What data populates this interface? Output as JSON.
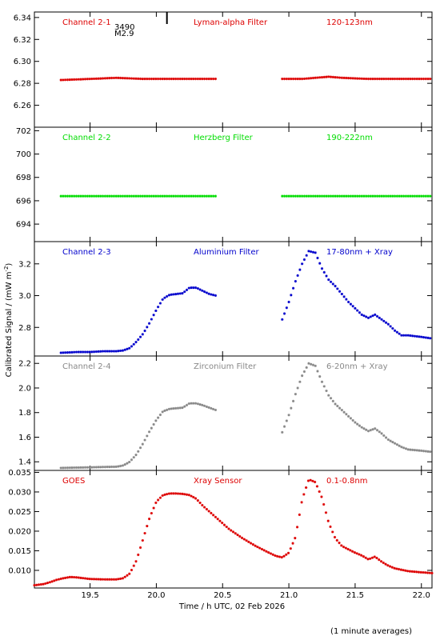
{
  "figure": {
    "ylabel": "Calibrated Signal / (mW m",
    "ylabel_sup": "-2",
    "ylabel_close": ")",
    "xlabel": "Time / h UTC, 02 Feb 2026",
    "footnote": "(1 minute averages)",
    "flare_marker": {
      "time": 20.08,
      "id": "3490",
      "class": "M2.9"
    }
  },
  "colors": {
    "red": "#dd0000",
    "green": "#00dd00",
    "blue": "#0000cc",
    "gray": "#888888",
    "axis": "#000000"
  },
  "chart_data": [
    {
      "type": "scatter",
      "title": "Channel 2-1",
      "filter": "Lyman-alpha Filter",
      "band": "120-123nm",
      "color": "#dd0000",
      "xlim": [
        19.08,
        22.08
      ],
      "ylim": [
        6.24,
        6.345
      ],
      "yticks": [
        6.26,
        6.28,
        6.3,
        6.32,
        6.34
      ],
      "ytick_labels": [
        "6.26",
        "6.28",
        "6.30",
        "6.32",
        "6.34"
      ],
      "density": 1,
      "segments": [
        {
          "x": [
            19.28,
            19.5,
            19.7,
            19.9,
            20.1,
            20.3,
            20.45
          ],
          "y": [
            6.283,
            6.284,
            6.285,
            6.284,
            6.284,
            6.284,
            6.284
          ]
        },
        {
          "x": [
            20.95,
            21.1,
            21.2,
            21.3,
            21.4,
            21.6,
            21.8,
            22.08
          ],
          "y": [
            6.284,
            6.284,
            6.285,
            6.286,
            6.285,
            6.284,
            6.284,
            6.284
          ]
        }
      ]
    },
    {
      "type": "scatter",
      "title": "Channel 2-2",
      "filter": "Herzberg Filter",
      "band": "190-222nm",
      "color": "#00dd00",
      "xlim": [
        19.08,
        22.08
      ],
      "ylim": [
        692.5,
        702.3
      ],
      "yticks": [
        694,
        696,
        698,
        700,
        702
      ],
      "ytick_labels": [
        "694",
        "696",
        "698",
        "700",
        "702"
      ],
      "density": 1,
      "segments": [
        {
          "x": [
            19.28,
            19.7,
            20.1,
            20.45
          ],
          "y": [
            696.4,
            696.4,
            696.4,
            696.4
          ]
        },
        {
          "x": [
            20.95,
            21.4,
            21.8,
            22.08
          ],
          "y": [
            696.4,
            696.4,
            696.4,
            696.4
          ]
        }
      ]
    },
    {
      "type": "scatter",
      "title": "Channel 2-3",
      "filter": "Aluminium Filter",
      "band": "17-80nm + Xray",
      "color": "#0000cc",
      "xlim": [
        19.08,
        22.08
      ],
      "ylim": [
        2.62,
        3.34
      ],
      "yticks": [
        2.8,
        3.0,
        3.2
      ],
      "ytick_labels": [
        "2.8",
        "3.0",
        "3.2"
      ],
      "density": 1,
      "segments": [
        {
          "x": [
            19.28,
            19.4,
            19.5,
            19.6,
            19.7,
            19.75,
            19.8,
            19.85,
            19.9,
            19.95,
            20.0,
            20.05,
            20.1,
            20.15,
            20.2,
            20.25,
            20.3,
            20.35,
            20.4,
            20.45
          ],
          "y": [
            2.64,
            2.645,
            2.645,
            2.65,
            2.65,
            2.655,
            2.67,
            2.71,
            2.76,
            2.83,
            2.91,
            2.98,
            3.005,
            3.01,
            3.015,
            3.05,
            3.05,
            3.03,
            3.01,
            3.0
          ]
        },
        {
          "x": [
            20.95,
            21.0,
            21.05,
            21.1,
            21.15,
            21.2,
            21.25,
            21.3,
            21.35,
            21.4,
            21.45,
            21.5,
            21.55,
            21.6,
            21.65,
            21.7,
            21.75,
            21.8,
            21.85,
            21.9,
            22.0,
            22.08
          ],
          "y": [
            2.85,
            2.96,
            3.09,
            3.2,
            3.28,
            3.27,
            3.17,
            3.1,
            3.06,
            3.01,
            2.96,
            2.92,
            2.88,
            2.86,
            2.88,
            2.85,
            2.82,
            2.78,
            2.75,
            2.75,
            2.74,
            2.73
          ]
        }
      ]
    },
    {
      "type": "scatter",
      "title": "Channel 2-4",
      "filter": "Zirconium Filter",
      "band": "6-20nm + Xray",
      "color": "#888888",
      "xlim": [
        19.08,
        22.08
      ],
      "ylim": [
        1.33,
        2.26
      ],
      "yticks": [
        1.4,
        1.6,
        1.8,
        2.0,
        2.2
      ],
      "ytick_labels": [
        "1.4",
        "1.6",
        "1.8",
        "2.0",
        "2.2"
      ],
      "density": 1,
      "segments": [
        {
          "x": [
            19.28,
            19.5,
            19.7,
            19.75,
            19.8,
            19.85,
            19.9,
            19.95,
            20.0,
            20.05,
            20.1,
            20.15,
            20.2,
            20.25,
            20.3,
            20.35,
            20.4,
            20.45
          ],
          "y": [
            1.35,
            1.355,
            1.36,
            1.37,
            1.4,
            1.46,
            1.55,
            1.65,
            1.74,
            1.81,
            1.83,
            1.835,
            1.84,
            1.875,
            1.875,
            1.86,
            1.84,
            1.82
          ]
        },
        {
          "x": [
            20.95,
            21.0,
            21.05,
            21.1,
            21.15,
            21.2,
            21.25,
            21.3,
            21.35,
            21.4,
            21.45,
            21.5,
            21.55,
            21.6,
            21.65,
            21.7,
            21.75,
            21.8,
            21.85,
            21.9,
            22.0,
            22.08
          ],
          "y": [
            1.64,
            1.78,
            1.95,
            2.1,
            2.2,
            2.18,
            2.05,
            1.94,
            1.87,
            1.82,
            1.77,
            1.72,
            1.68,
            1.65,
            1.67,
            1.63,
            1.58,
            1.55,
            1.52,
            1.5,
            1.49,
            1.48
          ]
        }
      ]
    },
    {
      "type": "scatter",
      "title": "GOES",
      "filter": "Xray Sensor",
      "band": "0.1-0.8nm",
      "color": "#dd0000",
      "xlim": [
        19.08,
        22.08
      ],
      "ylim": [
        0.0055,
        0.0355
      ],
      "yticks": [
        0.01,
        0.015,
        0.02,
        0.025,
        0.03,
        0.035
      ],
      "ytick_labels": [
        "0.010",
        "0.015",
        "0.020",
        "0.025",
        "0.030",
        "0.035"
      ],
      "xticks": [
        19.5,
        20.0,
        20.5,
        21.0,
        21.5,
        22.0
      ],
      "xtick_labels": [
        "19.5",
        "20.0",
        "20.5",
        "21.0",
        "21.5",
        "22.0"
      ],
      "density": 1,
      "segments": [
        {
          "x": [
            19.08,
            19.15,
            19.2,
            19.25,
            19.3,
            19.35,
            19.4,
            19.5,
            19.6,
            19.7,
            19.75,
            19.8,
            19.85,
            19.9,
            19.95,
            20.0,
            20.05,
            20.1,
            20.15,
            20.2,
            20.25,
            20.3,
            20.35,
            20.45,
            20.55,
            20.65,
            20.75,
            20.85,
            20.9,
            20.95,
            21.0,
            21.05,
            21.1,
            21.15,
            21.2,
            21.25,
            21.3,
            21.35,
            21.4,
            21.5,
            21.55,
            21.6,
            21.65,
            21.7,
            21.75,
            21.8,
            21.9,
            22.0,
            22.08
          ],
          "y": [
            0.0062,
            0.0065,
            0.007,
            0.0076,
            0.008,
            0.0083,
            0.0082,
            0.0078,
            0.0077,
            0.0077,
            0.008,
            0.0092,
            0.0125,
            0.018,
            0.0235,
            0.0275,
            0.0292,
            0.0296,
            0.0296,
            0.0295,
            0.0292,
            0.0283,
            0.0265,
            0.0235,
            0.0205,
            0.0182,
            0.0162,
            0.0145,
            0.0137,
            0.0133,
            0.0145,
            0.0185,
            0.028,
            0.0332,
            0.0325,
            0.0285,
            0.0222,
            0.0182,
            0.0162,
            0.0145,
            0.0138,
            0.0128,
            0.0135,
            0.0122,
            0.0112,
            0.0105,
            0.0098,
            0.0095,
            0.0093
          ]
        }
      ]
    }
  ]
}
